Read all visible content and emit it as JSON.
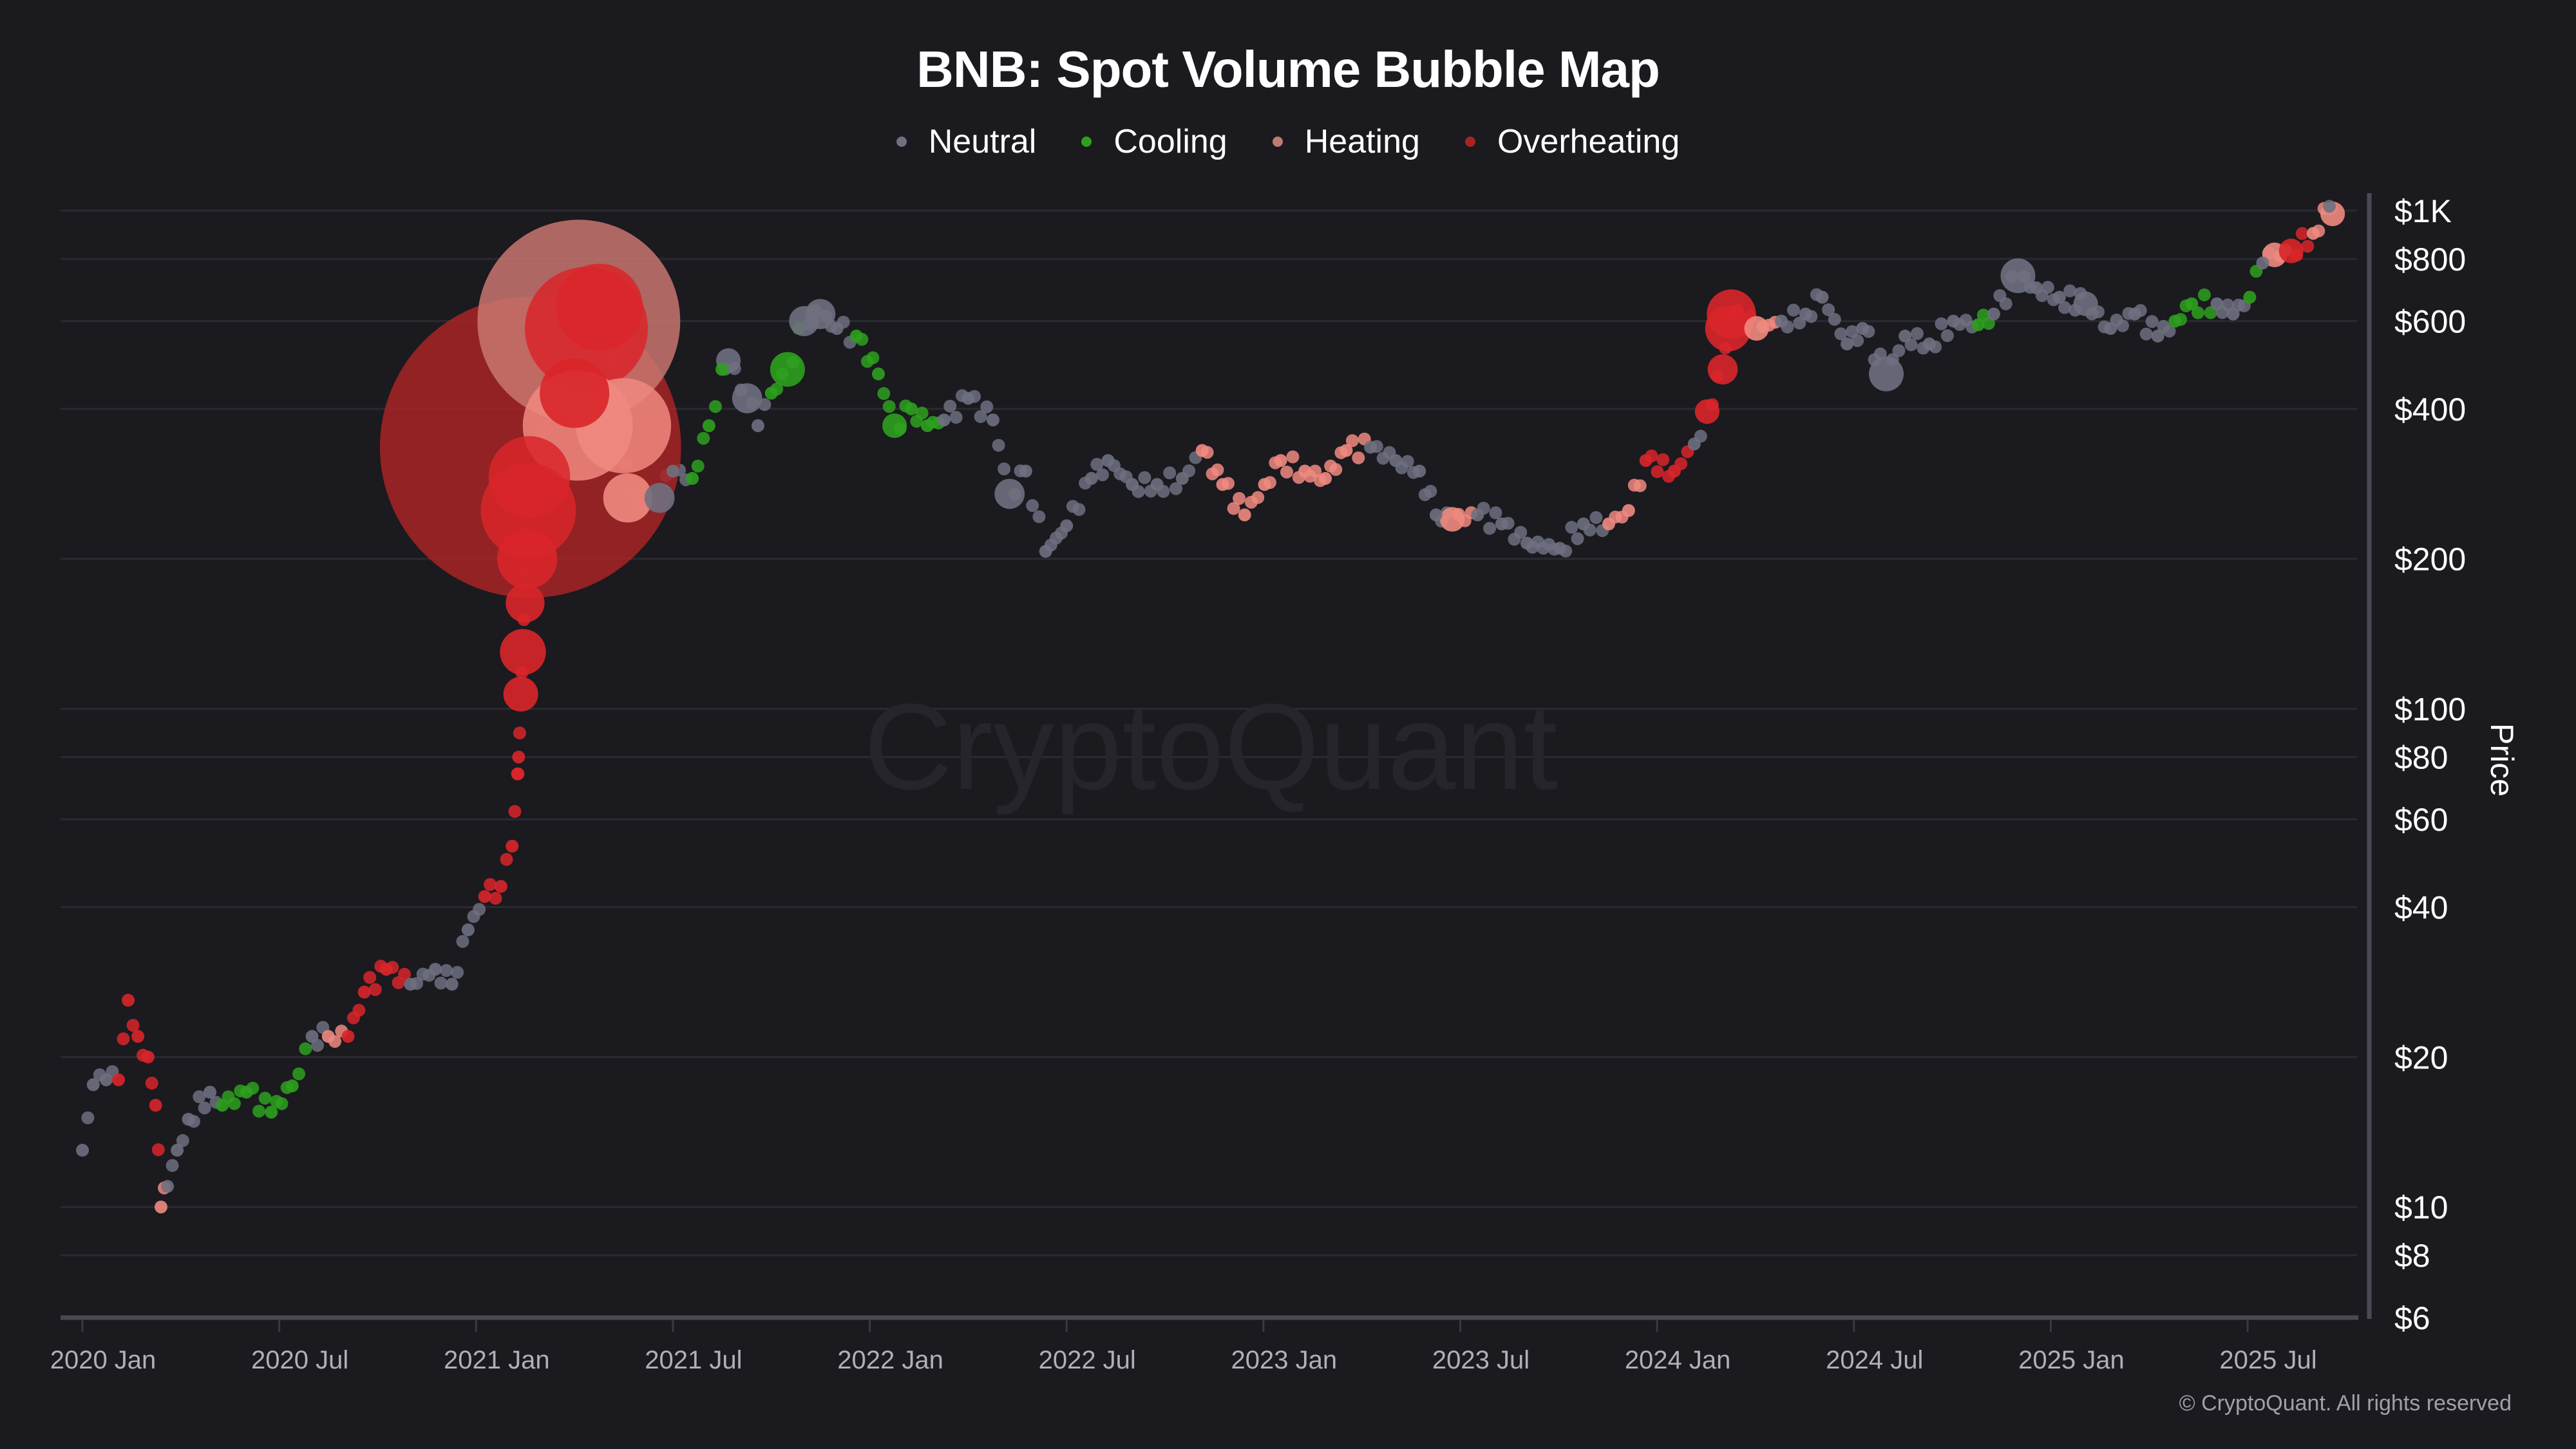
{
  "chart_data": {
    "type": "scatter",
    "title": "BNB: Spot Volume Bubble Map",
    "ylabel": "Price",
    "yscale": "log",
    "ylim": [
      6,
      1000
    ],
    "xlim": [
      "2020-01-01",
      "2025-10-01"
    ],
    "grid": true,
    "legend_placement": "top-center",
    "watermark": "CryptoQuant",
    "legend": [
      {
        "key": "N",
        "label": "Neutral",
        "color": "#6f7080"
      },
      {
        "key": "C",
        "label": "Cooling",
        "color": "#2ea01e"
      },
      {
        "key": "H",
        "label": "Heating",
        "color": "#f08a80"
      },
      {
        "key": "O",
        "label": "Overheating",
        "color": "#d9262a"
      }
    ],
    "yticks": [
      {
        "value": 1000,
        "label": "$1K"
      },
      {
        "value": 800,
        "label": "$800"
      },
      {
        "value": 600,
        "label": "$600"
      },
      {
        "value": 400,
        "label": "$400"
      },
      {
        "value": 200,
        "label": "$200"
      },
      {
        "value": 100,
        "label": "$100"
      },
      {
        "value": 80,
        "label": "$80"
      },
      {
        "value": 60,
        "label": "$60"
      },
      {
        "value": 40,
        "label": "$40"
      },
      {
        "value": 20,
        "label": "$20"
      },
      {
        "value": 10,
        "label": "$10"
      },
      {
        "value": 8,
        "label": "$8"
      },
      {
        "value": 6,
        "label": "$6"
      }
    ],
    "xticks": [
      {
        "value": "2020-01-01",
        "label": "2020 Jan"
      },
      {
        "value": "2020-07-01",
        "label": "2020 Jul"
      },
      {
        "value": "2021-01-01",
        "label": "2021 Jan"
      },
      {
        "value": "2021-07-01",
        "label": "2021 Jul"
      },
      {
        "value": "2022-01-01",
        "label": "2022 Jan"
      },
      {
        "value": "2022-07-01",
        "label": "2022 Jul"
      },
      {
        "value": "2023-01-01",
        "label": "2023 Jan"
      },
      {
        "value": "2023-07-01",
        "label": "2023 Jul"
      },
      {
        "value": "2024-01-01",
        "label": "2024 Jan"
      },
      {
        "value": "2024-07-01",
        "label": "2024 Jul"
      },
      {
        "value": "2025-01-01",
        "label": "2025 Jan"
      },
      {
        "value": "2025-07-01",
        "label": "2025 Jul"
      }
    ],
    "point_fields": [
      "date",
      "price",
      "category",
      "relative_volume"
    ],
    "points": [
      [
        "2020-01-01",
        13,
        "N",
        1
      ],
      [
        "2020-01-11",
        17.6,
        "N",
        1
      ],
      [
        "2020-01-23",
        18,
        "N",
        1
      ],
      [
        "2020-02-04",
        18,
        "O",
        1
      ],
      [
        "2020-02-13",
        26,
        "O",
        1
      ],
      [
        "2020-02-22",
        22,
        "O",
        1
      ],
      [
        "2020-03-01",
        20,
        "O",
        1
      ],
      [
        "2020-03-08",
        16,
        "O",
        1
      ],
      [
        "2020-03-13",
        10,
        "H",
        1
      ],
      [
        "2020-03-19",
        11,
        "N",
        1
      ],
      [
        "2020-03-28",
        13,
        "N",
        1
      ],
      [
        "2020-04-08",
        15,
        "N",
        1
      ],
      [
        "2020-04-28",
        17,
        "N",
        1
      ],
      [
        "2020-05-09",
        16,
        "C",
        1
      ],
      [
        "2020-06-01",
        17,
        "C",
        1
      ],
      [
        "2020-06-24",
        15.5,
        "C",
        1
      ],
      [
        "2020-07-13",
        17.5,
        "C",
        1
      ],
      [
        "2020-08-01",
        22,
        "N",
        1
      ],
      [
        "2020-08-16",
        22,
        "H",
        1
      ],
      [
        "2020-09-04",
        22,
        "O",
        1
      ],
      [
        "2020-09-19",
        27,
        "O",
        1
      ],
      [
        "2020-10-09",
        30,
        "O",
        1
      ],
      [
        "2020-11-01",
        28,
        "N",
        1
      ],
      [
        "2020-11-24",
        30,
        "N",
        1
      ],
      [
        "2020-12-09",
        28,
        "N",
        1
      ],
      [
        "2020-12-24",
        36,
        "N",
        1
      ],
      [
        "2021-01-09",
        42,
        "O",
        1
      ],
      [
        "2021-01-24",
        44,
        "O",
        1
      ],
      [
        "2021-02-04",
        53,
        "O",
        1
      ],
      [
        "2021-02-09",
        74,
        "O",
        1
      ],
      [
        "2021-02-10",
        80,
        "O",
        1
      ],
      [
        "2021-02-12",
        107,
        "O",
        4
      ],
      [
        "2021-02-14",
        130,
        "O",
        7
      ],
      [
        "2021-02-16",
        163,
        "O",
        5
      ],
      [
        "2021-02-18",
        200,
        "O",
        12
      ],
      [
        "2021-02-19",
        250,
        "O",
        30
      ],
      [
        "2021-02-20",
        292,
        "O",
        22
      ],
      [
        "2021-02-21",
        335,
        "O",
        300
      ],
      [
        "2021-04-01",
        430,
        "O",
        16
      ],
      [
        "2021-04-04",
        370,
        "H",
        40
      ],
      [
        "2021-04-05",
        600,
        "H",
        136
      ],
      [
        "2021-04-12",
        580,
        "O",
        50
      ],
      [
        "2021-04-24",
        640,
        "O",
        25
      ],
      [
        "2021-05-16",
        370,
        "H",
        30
      ],
      [
        "2021-05-20",
        265,
        "H",
        8
      ],
      [
        "2021-06-19",
        265,
        "N",
        3
      ],
      [
        "2021-07-01",
        300,
        "N",
        1
      ],
      [
        "2021-07-19",
        290,
        "C",
        1
      ],
      [
        "2021-08-04",
        370,
        "C",
        1
      ],
      [
        "2021-08-16",
        480,
        "C",
        1
      ],
      [
        "2021-08-22",
        500,
        "N",
        2
      ],
      [
        "2021-09-09",
        420,
        "N",
        3
      ],
      [
        "2021-09-19",
        370,
        "N",
        1
      ],
      [
        "2021-10-01",
        430,
        "C",
        1
      ],
      [
        "2021-10-16",
        480,
        "C",
        4
      ],
      [
        "2021-11-01",
        600,
        "N",
        3
      ],
      [
        "2021-11-16",
        620,
        "N",
        3
      ],
      [
        "2021-12-01",
        580,
        "N",
        1
      ],
      [
        "2021-12-19",
        560,
        "C",
        1
      ],
      [
        "2022-01-09",
        470,
        "C",
        1
      ],
      [
        "2022-01-24",
        370,
        "C",
        2
      ],
      [
        "2022-02-09",
        400,
        "C",
        1
      ],
      [
        "2022-02-24",
        370,
        "C",
        1
      ],
      [
        "2022-03-09",
        380,
        "N",
        1
      ],
      [
        "2022-04-01",
        420,
        "N",
        1
      ],
      [
        "2022-04-24",
        380,
        "N",
        1
      ],
      [
        "2022-05-09",
        270,
        "N",
        3
      ],
      [
        "2022-05-24",
        300,
        "N",
        1
      ],
      [
        "2022-06-12",
        207,
        "N",
        1
      ],
      [
        "2022-07-01",
        233,
        "N",
        1
      ],
      [
        "2022-07-24",
        290,
        "N",
        1
      ],
      [
        "2022-08-09",
        315,
        "N",
        1
      ],
      [
        "2022-09-01",
        282,
        "N",
        1
      ],
      [
        "2022-09-24",
        282,
        "N",
        1
      ],
      [
        "2022-10-17",
        290,
        "N",
        1
      ],
      [
        "2022-11-05",
        330,
        "H",
        1
      ],
      [
        "2022-11-24",
        282,
        "H",
        1
      ],
      [
        "2022-12-14",
        245,
        "H",
        1
      ],
      [
        "2023-01-02",
        282,
        "H",
        1
      ],
      [
        "2023-01-17",
        315,
        "H",
        1
      ],
      [
        "2023-02-09",
        300,
        "H",
        1
      ],
      [
        "2023-02-28",
        290,
        "H",
        1
      ],
      [
        "2023-03-17",
        330,
        "H",
        1
      ],
      [
        "2023-04-09",
        335,
        "N",
        1
      ],
      [
        "2023-05-02",
        315,
        "N",
        1
      ],
      [
        "2023-05-24",
        300,
        "N",
        1
      ],
      [
        "2023-06-09",
        245,
        "N",
        1
      ],
      [
        "2023-06-24",
        240,
        "H",
        2
      ],
      [
        "2023-07-17",
        245,
        "N",
        1
      ],
      [
        "2023-08-09",
        235,
        "N",
        1
      ],
      [
        "2023-09-02",
        215,
        "N",
        1
      ],
      [
        "2023-10-02",
        210,
        "N",
        1
      ],
      [
        "2023-10-24",
        235,
        "N",
        1
      ],
      [
        "2023-11-17",
        235,
        "H",
        1
      ],
      [
        "2023-12-05",
        250,
        "H",
        1
      ],
      [
        "2023-12-21",
        315,
        "O",
        1
      ],
      [
        "2024-01-17",
        300,
        "O",
        1
      ],
      [
        "2024-02-05",
        340,
        "N",
        1
      ],
      [
        "2024-02-17",
        395,
        "O",
        2
      ],
      [
        "2024-03-01",
        480,
        "O",
        3
      ],
      [
        "2024-03-06",
        580,
        "O",
        7
      ],
      [
        "2024-03-09",
        620,
        "O",
        8
      ],
      [
        "2024-04-02",
        580,
        "H",
        2
      ],
      [
        "2024-04-25",
        600,
        "N",
        1
      ],
      [
        "2024-05-17",
        620,
        "N",
        1
      ],
      [
        "2024-06-02",
        670,
        "N",
        1
      ],
      [
        "2024-06-25",
        540,
        "N",
        1
      ],
      [
        "2024-07-09",
        580,
        "N",
        1
      ],
      [
        "2024-07-31",
        470,
        "N",
        4
      ],
      [
        "2024-08-18",
        560,
        "N",
        1
      ],
      [
        "2024-09-10",
        540,
        "N",
        1
      ],
      [
        "2024-10-02",
        600,
        "N",
        1
      ],
      [
        "2024-10-25",
        590,
        "C",
        1
      ],
      [
        "2024-11-09",
        620,
        "N",
        1
      ],
      [
        "2024-12-01",
        740,
        "N",
        4
      ],
      [
        "2024-12-18",
        700,
        "N",
        1
      ],
      [
        "2025-01-09",
        670,
        "N",
        1
      ],
      [
        "2025-02-03",
        650,
        "N",
        2
      ],
      [
        "2025-02-26",
        580,
        "N",
        1
      ],
      [
        "2025-03-18",
        620,
        "N",
        1
      ],
      [
        "2025-04-09",
        560,
        "N",
        1
      ],
      [
        "2025-04-25",
        600,
        "C",
        1
      ],
      [
        "2025-05-10",
        650,
        "C",
        1
      ],
      [
        "2025-06-03",
        650,
        "N",
        1
      ],
      [
        "2025-06-18",
        620,
        "N",
        1
      ],
      [
        "2025-07-03",
        670,
        "C",
        1
      ],
      [
        "2025-07-15",
        785,
        "N",
        1
      ],
      [
        "2025-07-26",
        815,
        "H",
        2
      ],
      [
        "2025-08-11",
        830,
        "O",
        2
      ],
      [
        "2025-09-01",
        900,
        "H",
        1
      ],
      [
        "2025-09-16",
        1020,
        "N",
        1
      ],
      [
        "2025-09-19",
        985,
        "H",
        2
      ]
    ]
  },
  "footer": {
    "copyright": "© CryptoQuant. All rights reserved"
  }
}
